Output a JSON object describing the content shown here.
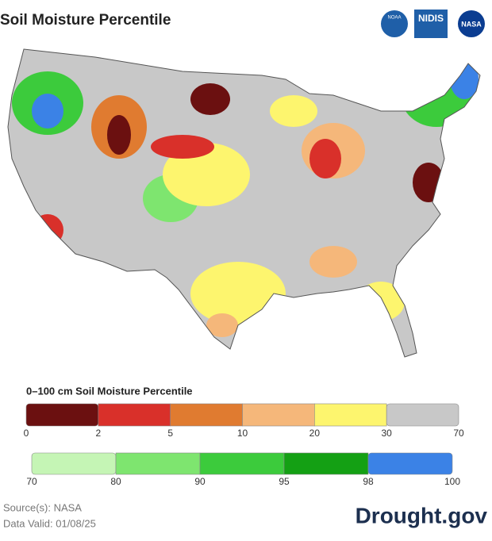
{
  "header": {
    "title": "Soil Moisture Percentile",
    "logos": [
      "NOAA",
      "NIDIS",
      "NASA"
    ]
  },
  "legend": {
    "title": "0–100 cm Soil Moisture Percentile",
    "scales": [
      {
        "ticks": [
          0,
          2,
          5,
          10,
          20,
          30,
          70
        ],
        "colors": [
          "#6b1010",
          "#d9302a",
          "#e07b30",
          "#f5b77a",
          "#fdf56e",
          "#c8c8c8"
        ]
      },
      {
        "ticks": [
          70,
          80,
          90,
          95,
          98,
          100
        ],
        "colors": [
          "#c5f5b5",
          "#7ee56f",
          "#3ccb3c",
          "#14a014",
          "#3b82e6"
        ]
      }
    ]
  },
  "footer": {
    "source": "Source(s): NASA",
    "valid": "Data Valid: 01/08/25",
    "brand": "Drought.gov"
  }
}
